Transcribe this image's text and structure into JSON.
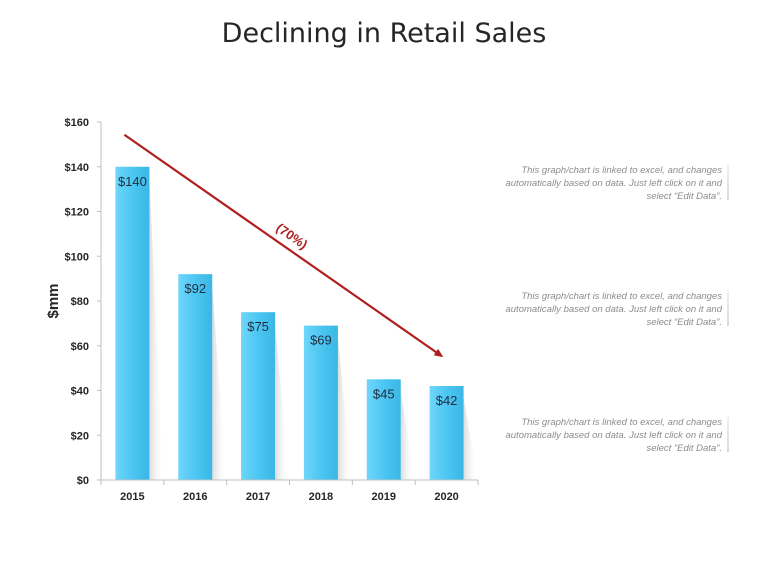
{
  "title": "Declining in Retail Sales",
  "chart_data": {
    "type": "bar",
    "categories": [
      "2015",
      "2016",
      "2017",
      "2018",
      "2019",
      "2020"
    ],
    "values": [
      140,
      92,
      75,
      69,
      45,
      42
    ],
    "data_labels": [
      "$140",
      "$92",
      "$75",
      "$69",
      "$45",
      "$42"
    ],
    "ylabel": "$mm",
    "xlabel": "",
    "ylim": [
      0,
      160
    ],
    "yticks": [
      0,
      20,
      40,
      60,
      80,
      100,
      120,
      140,
      160
    ],
    "ytick_labels": [
      "$0",
      "$20",
      "$40",
      "$60",
      "$80",
      "$100",
      "$120",
      "$140",
      "$160"
    ],
    "grid": false,
    "bar_color": "#4dc8f4",
    "annotation": {
      "text": "(70%)",
      "color": "#b01e1e",
      "from_category": "2015",
      "to_category": "2020"
    }
  },
  "notes": [
    "This graph/chart is linked to excel, and changes automatically based on data. Just left click on it and select “Edit Data”.",
    "This graph/chart is linked to excel, and changes automatically based on data. Just left click on it and select “Edit Data”.",
    "This graph/chart is linked to excel, and changes automatically based on data. Just left click on it and select “Edit Data”."
  ]
}
